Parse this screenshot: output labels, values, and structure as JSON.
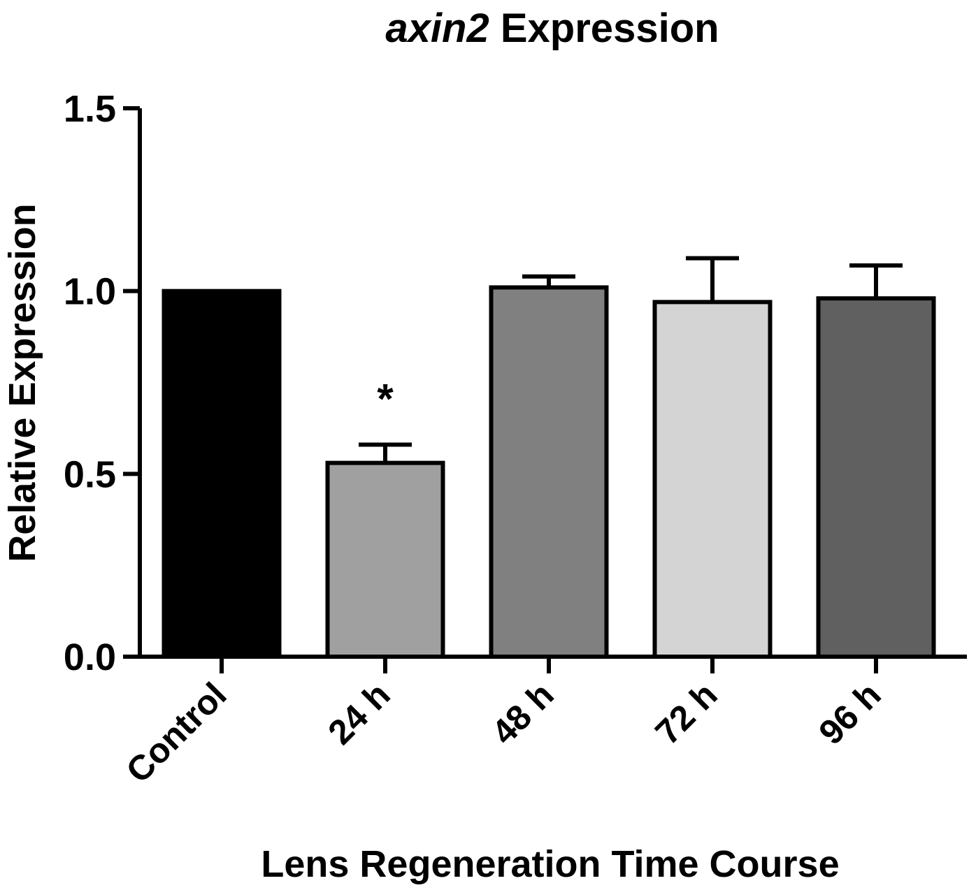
{
  "chart_data": {
    "type": "bar",
    "title_italic": "axin2",
    "title_rest": " Expression",
    "xlabel": "Lens Regeneration Time Course",
    "ylabel": "Relative  Expression",
    "ylim": [
      0,
      1.5
    ],
    "yticks": [
      "0.0",
      "0.5",
      "1.0",
      "1.5"
    ],
    "categories": [
      "Control",
      "24 h",
      "48 h",
      "72 h",
      "96 h"
    ],
    "values": [
      1.0,
      0.53,
      1.01,
      0.97,
      0.98
    ],
    "errors": [
      0,
      0.05,
      0.03,
      0.12,
      0.09
    ],
    "fills": [
      "#000000",
      "#a0a0a0",
      "#808080",
      "#d4d4d4",
      "#606060"
    ],
    "annotations": [
      "",
      "*",
      "",
      "",
      ""
    ]
  }
}
